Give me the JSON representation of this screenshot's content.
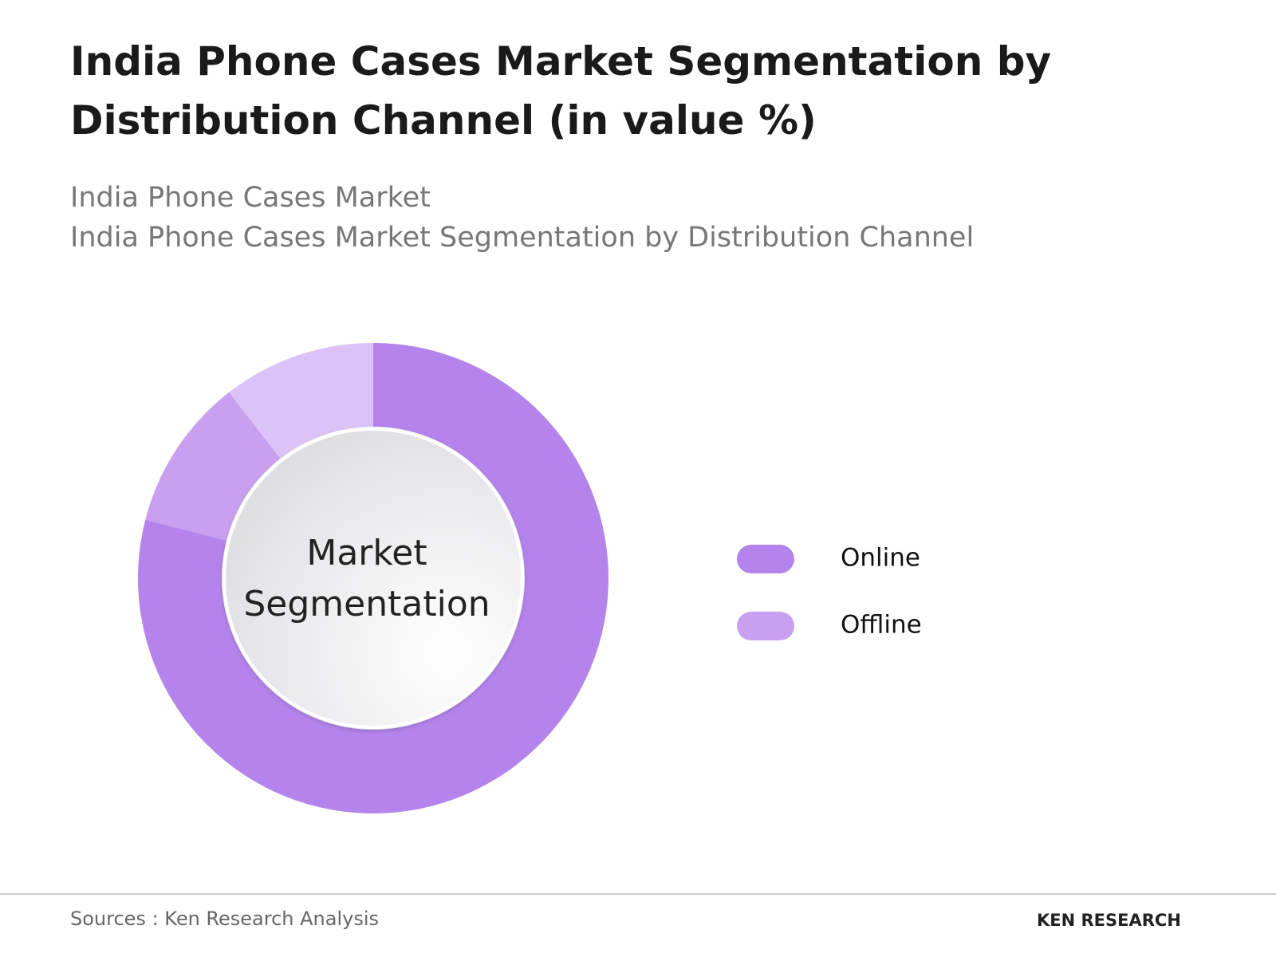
{
  "chart_data": {
    "type": "donut",
    "title": "India Phone Cases Market Segmentation by Distribution Channel (in value %)",
    "subtitle": "India Phone Cases Market",
    "subtitle2": "India Phone Cases Market Segmentation by Distribution Channel",
    "center_label": "Market Segmentation",
    "categories": [
      "Online",
      "Offline",
      null
    ],
    "values": [
      79,
      10.5,
      10.5
    ],
    "colors": [
      "#b484ec",
      "#c9a0f0",
      "#dcc3f7"
    ],
    "legend": "right"
  },
  "footer": {
    "source": "Sources : Ken Research Analysis",
    "logo": "KEN RESEARCH"
  }
}
